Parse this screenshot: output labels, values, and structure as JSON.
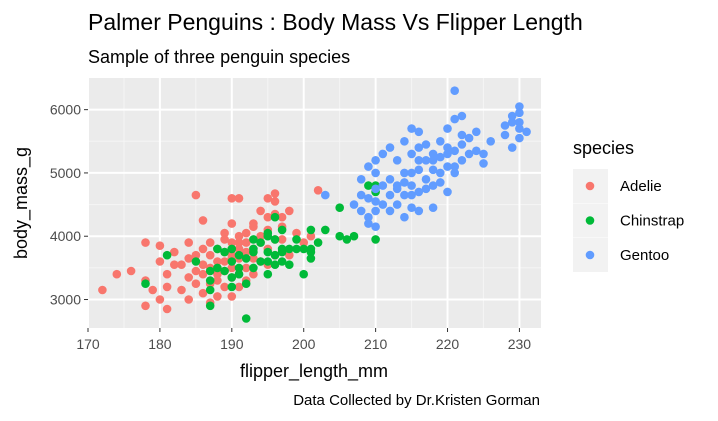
{
  "chart_data": {
    "type": "scatter",
    "title": "Palmer Penguins : Body Mass Vs Flipper Length",
    "subtitle": "Sample of three penguin species",
    "xlabel": "flipper_length_mm",
    "ylabel": "body_mass_g",
    "caption": "Data Collected by Dr.Kristen Gorman",
    "xlim": [
      170,
      233
    ],
    "ylim": [
      2550,
      6500
    ],
    "xticks": [
      170,
      180,
      190,
      200,
      210,
      220,
      230
    ],
    "yticks": [
      3000,
      4000,
      5000,
      6000
    ],
    "grid": true,
    "legend": {
      "title": "species",
      "placement": "right"
    },
    "series": [
      {
        "name": "Adelie",
        "color": "#F8766D",
        "points": [
          [
            172,
            3150
          ],
          [
            174,
            3400
          ],
          [
            176,
            3450
          ],
          [
            178,
            3900
          ],
          [
            178,
            3300
          ],
          [
            179,
            3150
          ],
          [
            178,
            2900
          ],
          [
            180,
            3850
          ],
          [
            180,
            3600
          ],
          [
            180,
            3000
          ],
          [
            181,
            3400
          ],
          [
            181,
            3200
          ],
          [
            181,
            2850
          ],
          [
            182,
            3750
          ],
          [
            182,
            3550
          ],
          [
            183,
            3550
          ],
          [
            183,
            3150
          ],
          [
            184,
            3650
          ],
          [
            184,
            3350
          ],
          [
            184,
            3000
          ],
          [
            184,
            3900
          ],
          [
            185,
            3700
          ],
          [
            185,
            3250
          ],
          [
            185,
            3450
          ],
          [
            185,
            4650
          ],
          [
            186,
            3550
          ],
          [
            186,
            3800
          ],
          [
            186,
            3100
          ],
          [
            186,
            3400
          ],
          [
            186,
            4250
          ],
          [
            187,
            3500
          ],
          [
            187,
            3900
          ],
          [
            187,
            3250
          ],
          [
            187,
            3700
          ],
          [
            187,
            2950
          ],
          [
            188,
            3600
          ],
          [
            188,
            3400
          ],
          [
            188,
            3800
          ],
          [
            188,
            3300
          ],
          [
            188,
            3050
          ],
          [
            189,
            3750
          ],
          [
            189,
            3950
          ],
          [
            189,
            3450
          ],
          [
            189,
            3200
          ],
          [
            189,
            4050
          ],
          [
            189,
            3600
          ],
          [
            190,
            3900
          ],
          [
            190,
            4200
          ],
          [
            190,
            3800
          ],
          [
            190,
            3650
          ],
          [
            190,
            3500
          ],
          [
            190,
            3350
          ],
          [
            190,
            4600
          ],
          [
            190,
            3050
          ],
          [
            190,
            3700
          ],
          [
            191,
            3900
          ],
          [
            191,
            3650
          ],
          [
            191,
            3400
          ],
          [
            191,
            4000
          ],
          [
            191,
            3200
          ],
          [
            191,
            4600
          ],
          [
            191,
            3800
          ],
          [
            192,
            3750
          ],
          [
            192,
            3500
          ],
          [
            192,
            3900
          ],
          [
            192,
            4050
          ],
          [
            192,
            3300
          ],
          [
            193,
            3800
          ],
          [
            193,
            4150
          ],
          [
            193,
            3650
          ],
          [
            193,
            3400
          ],
          [
            193,
            4200
          ],
          [
            194,
            3900
          ],
          [
            194,
            4000
          ],
          [
            194,
            3600
          ],
          [
            194,
            4400
          ],
          [
            195,
            3800
          ],
          [
            195,
            4100
          ],
          [
            195,
            3550
          ],
          [
            195,
            4600
          ],
          [
            195,
            4300
          ],
          [
            196,
            3700
          ],
          [
            196,
            4350
          ],
          [
            196,
            3950
          ],
          [
            196,
            4675
          ],
          [
            196,
            4550
          ],
          [
            197,
            3950
          ],
          [
            197,
            4150
          ],
          [
            197,
            4300
          ],
          [
            198,
            4400
          ],
          [
            198,
            3700
          ],
          [
            199,
            4050
          ],
          [
            200,
            3900
          ],
          [
            201,
            4000
          ],
          [
            202,
            4725
          ]
        ]
      },
      {
        "name": "Chinstrap",
        "color": "#00BA38",
        "points": [
          [
            178,
            3250
          ],
          [
            181,
            3700
          ],
          [
            185,
            3600
          ],
          [
            187,
            3450
          ],
          [
            187,
            3150
          ],
          [
            187,
            3300
          ],
          [
            187,
            2900
          ],
          [
            188,
            3800
          ],
          [
            188,
            3500
          ],
          [
            189,
            3450
          ],
          [
            189,
            3750
          ],
          [
            190,
            3600
          ],
          [
            190,
            3350
          ],
          [
            190,
            3800
          ],
          [
            190,
            3200
          ],
          [
            191,
            3700
          ],
          [
            191,
            3400
          ],
          [
            191,
            3500
          ],
          [
            192,
            3650
          ],
          [
            192,
            2700
          ],
          [
            192,
            3250
          ],
          [
            193,
            3950
          ],
          [
            193,
            3750
          ],
          [
            193,
            3500
          ],
          [
            193,
            3800
          ],
          [
            194,
            3900
          ],
          [
            194,
            3600
          ],
          [
            195,
            3600
          ],
          [
            195,
            3750
          ],
          [
            195,
            4050
          ],
          [
            195,
            4000
          ],
          [
            195,
            3400
          ],
          [
            196,
            3700
          ],
          [
            196,
            4300
          ],
          [
            196,
            3950
          ],
          [
            196,
            3550
          ],
          [
            197,
            3800
          ],
          [
            197,
            3750
          ],
          [
            197,
            3600
          ],
          [
            197,
            4100
          ],
          [
            198,
            3800
          ],
          [
            198,
            3550
          ],
          [
            199,
            3800
          ],
          [
            199,
            3950
          ],
          [
            200,
            3800
          ],
          [
            200,
            3400
          ],
          [
            201,
            3750
          ],
          [
            201,
            3650
          ],
          [
            201,
            4100
          ],
          [
            201,
            3800
          ],
          [
            202,
            3900
          ],
          [
            203,
            4100
          ],
          [
            205,
            4450
          ],
          [
            205,
            4000
          ],
          [
            206,
            3950
          ],
          [
            207,
            4000
          ],
          [
            209,
            4800
          ],
          [
            210,
            4700
          ],
          [
            210,
            3950
          ],
          [
            210,
            4800
          ]
        ]
      },
      {
        "name": "Gentoo",
        "color": "#619CFF",
        "points": [
          [
            203,
            4650
          ],
          [
            207,
            4500
          ],
          [
            208,
            4650
          ],
          [
            208,
            4400
          ],
          [
            208,
            4900
          ],
          [
            209,
            4200
          ],
          [
            209,
            4300
          ],
          [
            209,
            4600
          ],
          [
            209,
            5100
          ],
          [
            210,
            4400
          ],
          [
            210,
            4550
          ],
          [
            210,
            4750
          ],
          [
            210,
            5000
          ],
          [
            210,
            4150
          ],
          [
            210,
            5200
          ],
          [
            211,
            4500
          ],
          [
            211,
            4800
          ],
          [
            211,
            5300
          ],
          [
            212,
            4400
          ],
          [
            212,
            4650
          ],
          [
            212,
            4900
          ],
          [
            212,
            5400
          ],
          [
            213,
            4500
          ],
          [
            213,
            4750
          ],
          [
            213,
            5200
          ],
          [
            213,
            4800
          ],
          [
            214,
            4850
          ],
          [
            214,
            4650
          ],
          [
            214,
            5000
          ],
          [
            214,
            4300
          ],
          [
            214,
            5500
          ],
          [
            215,
            4800
          ],
          [
            215,
            5000
          ],
          [
            215,
            5300
          ],
          [
            215,
            5700
          ],
          [
            215,
            4650
          ],
          [
            215,
            4450
          ],
          [
            216,
            4700
          ],
          [
            216,
            5050
          ],
          [
            216,
            5200
          ],
          [
            216,
            5650
          ],
          [
            216,
            4400
          ],
          [
            216,
            5400
          ],
          [
            217,
            4900
          ],
          [
            217,
            5200
          ],
          [
            217,
            4750
          ],
          [
            217,
            5450
          ],
          [
            218,
            5050
          ],
          [
            218,
            5200
          ],
          [
            218,
            4800
          ],
          [
            218,
            5300
          ],
          [
            218,
            4450
          ],
          [
            219,
            5000
          ],
          [
            219,
            5250
          ],
          [
            219,
            5500
          ],
          [
            219,
            4850
          ],
          [
            220,
            5100
          ],
          [
            220,
            5400
          ],
          [
            220,
            5700
          ],
          [
            220,
            5300
          ],
          [
            220,
            4700
          ],
          [
            221,
            5000
          ],
          [
            221,
            5100
          ],
          [
            221,
            5350
          ],
          [
            221,
            5850
          ],
          [
            221,
            6300
          ],
          [
            222,
            5200
          ],
          [
            222,
            5600
          ],
          [
            222,
            5450
          ],
          [
            222,
            5900
          ],
          [
            223,
            5550
          ],
          [
            223,
            5300
          ],
          [
            224,
            5350
          ],
          [
            224,
            5650
          ],
          [
            225,
            5300
          ],
          [
            225,
            5150
          ],
          [
            226,
            5500
          ],
          [
            228,
            5750
          ],
          [
            228,
            5600
          ],
          [
            229,
            5800
          ],
          [
            229,
            5400
          ],
          [
            229,
            5900
          ],
          [
            230,
            5950
          ],
          [
            230,
            5550
          ],
          [
            230,
            5800
          ],
          [
            230,
            6050
          ],
          [
            230,
            5700
          ],
          [
            231,
            5650
          ]
        ]
      }
    ]
  }
}
